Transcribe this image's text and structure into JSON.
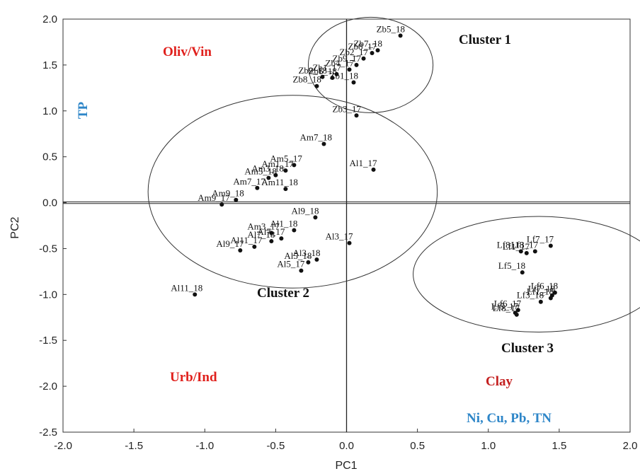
{
  "chart_data": {
    "type": "scatter",
    "xlabel": "PC1",
    "ylabel": "PC2",
    "xlim": [
      -2.0,
      2.0
    ],
    "ylim": [
      -2.5,
      2.0
    ],
    "xticks": [
      "-2.0",
      "-1.5",
      "-1.0",
      "-0.5",
      "0.0",
      "0.5",
      "1.0",
      "1.5",
      "2.0"
    ],
    "yticks": [
      "2.0",
      "1.5",
      "1.0",
      "0.5",
      "0.0",
      "-0.5",
      "-1.0",
      "-1.5",
      "-2.0",
      "-2.5"
    ],
    "grid": false,
    "reference_lines": {
      "x": 0,
      "y": 0
    },
    "points": [
      {
        "label": "Zb5_18",
        "x": 0.38,
        "y": 1.82
      },
      {
        "label": "Zb7_18",
        "x": 0.22,
        "y": 1.66
      },
      {
        "label": "Zb8_17",
        "x": 0.18,
        "y": 1.63
      },
      {
        "label": "Zb2_17",
        "x": 0.12,
        "y": 1.57
      },
      {
        "label": "Zb9_17",
        "x": 0.07,
        "y": 1.5
      },
      {
        "label": "Zb4_17",
        "x": 0.02,
        "y": 1.45
      },
      {
        "label": "Zb1_17",
        "x": -0.07,
        "y": 1.4
      },
      {
        "label": "Zb6_18",
        "x": -0.1,
        "y": 1.36
      },
      {
        "label": "Zb9_18",
        "x": -0.17,
        "y": 1.37
      },
      {
        "label": "Zb1_18",
        "x": 0.05,
        "y": 1.31
      },
      {
        "label": "Zb8_18",
        "x": -0.21,
        "y": 1.27
      },
      {
        "label": "Zb3_17",
        "x": 0.07,
        "y": 0.95
      },
      {
        "label": "Am7_18",
        "x": -0.16,
        "y": 0.64
      },
      {
        "label": "Al1_17",
        "x": 0.19,
        "y": 0.36
      },
      {
        "label": "Am5_17",
        "x": -0.37,
        "y": 0.41
      },
      {
        "label": "Am1_17",
        "x": -0.43,
        "y": 0.35
      },
      {
        "label": "Am3_18",
        "x": -0.5,
        "y": 0.3
      },
      {
        "label": "Am5_18",
        "x": -0.55,
        "y": 0.27
      },
      {
        "label": "Am11_18",
        "x": -0.43,
        "y": 0.15
      },
      {
        "label": "Am7_17",
        "x": -0.63,
        "y": 0.16
      },
      {
        "label": "Am9_18",
        "x": -0.78,
        "y": 0.03
      },
      {
        "label": "Am9_17",
        "x": -0.88,
        "y": -0.02
      },
      {
        "label": "Al9_18",
        "x": -0.22,
        "y": -0.16
      },
      {
        "label": "Al1_18",
        "x": -0.37,
        "y": -0.3
      },
      {
        "label": "Am3_17",
        "x": -0.53,
        "y": -0.33
      },
      {
        "label": "Al7_17",
        "x": -0.46,
        "y": -0.39
      },
      {
        "label": "Al7_18",
        "x": -0.53,
        "y": -0.42
      },
      {
        "label": "Al11_17",
        "x": -0.65,
        "y": -0.48
      },
      {
        "label": "Al9_17",
        "x": -0.75,
        "y": -0.52
      },
      {
        "label": "Al3_17",
        "x": 0.02,
        "y": -0.44
      },
      {
        "label": "Al3_18",
        "x": -0.21,
        "y": -0.62
      },
      {
        "label": "Al5_18",
        "x": -0.27,
        "y": -0.65
      },
      {
        "label": "Al5_17",
        "x": -0.32,
        "y": -0.74
      },
      {
        "label": "Al11_18",
        "x": -1.07,
        "y": -1.0
      },
      {
        "label": "Lf7_17",
        "x": 1.44,
        "y": -0.47
      },
      {
        "label": "Lf3_17",
        "x": 1.33,
        "y": -0.53
      },
      {
        "label": "Lf1_17",
        "x": 1.27,
        "y": -0.55
      },
      {
        "label": "Lf8_18",
        "x": 1.23,
        "y": -0.53
      },
      {
        "label": "Lf5_18",
        "x": 1.24,
        "y": -0.76
      },
      {
        "label": "Lf6_18",
        "x": 1.47,
        "y": -0.98
      },
      {
        "label": "Lf7_18",
        "x": 1.45,
        "y": -1.01
      },
      {
        "label": "Lf1_18",
        "x": 1.44,
        "y": -1.04
      },
      {
        "label": "Lf3_18",
        "x": 1.37,
        "y": -1.08
      },
      {
        "label": "Lf6_17",
        "x": 1.21,
        "y": -1.17
      },
      {
        "label": "Lf5_17",
        "x": 1.19,
        "y": -1.2
      },
      {
        "label": "Lf8_17",
        "x": 1.2,
        "y": -1.22
      }
    ],
    "clusters": [
      {
        "label": "Cluster 1",
        "center": [
          0.17,
          1.5
        ],
        "radius": [
          0.44,
          0.52
        ]
      },
      {
        "label": "Cluster 2",
        "center": [
          -0.38,
          0.12
        ],
        "radius": [
          1.02,
          1.05
        ]
      },
      {
        "label": "Cluster 3",
        "center": [
          1.35,
          -0.78
        ],
        "radius": [
          0.88,
          0.63
        ]
      }
    ],
    "annotations": [
      {
        "text": "Oliv/Vin",
        "color": "#e0201c"
      },
      {
        "text": "TP",
        "color": "#2e86c8"
      },
      {
        "text": "Urb/Ind",
        "color": "#e0201c"
      },
      {
        "text": "Clay",
        "color": "#c42020"
      },
      {
        "text": "Ni, Cu, Pb, TN",
        "color": "#2e86c8"
      }
    ]
  }
}
